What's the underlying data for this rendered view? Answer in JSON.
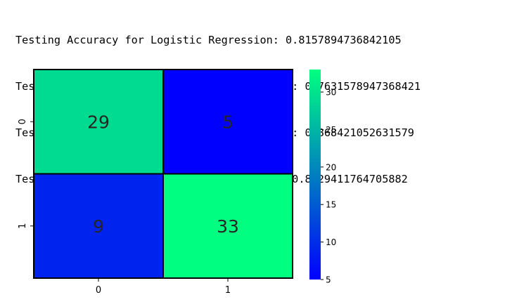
{
  "output_lines": [
    "Testing Accuracy for Logistic Regression: 0.8157894736842105",
    "Testing Sensitivity for Logistic Regression: 0.7631578947368421",
    "Testing Specificity for Logistic Regression: 0.868421052631579",
    "Testing Precision for Logistic Regression: 0.8529411764705882"
  ],
  "chart_data": {
    "type": "heatmap",
    "title": "",
    "xlabel": "",
    "ylabel": "",
    "x_tick_labels": [
      "0",
      "1"
    ],
    "y_tick_labels": [
      "0",
      "1"
    ],
    "matrix": [
      [
        29,
        5
      ],
      [
        9,
        33
      ]
    ],
    "annotations": true,
    "colormap": "winter",
    "color_low": "#0000ff",
    "color_high": "#00ff80",
    "colorbar": {
      "range": [
        5,
        33
      ],
      "ticks": [
        5,
        10,
        15,
        20,
        25,
        30
      ]
    },
    "cell_border_color": "#000000"
  }
}
